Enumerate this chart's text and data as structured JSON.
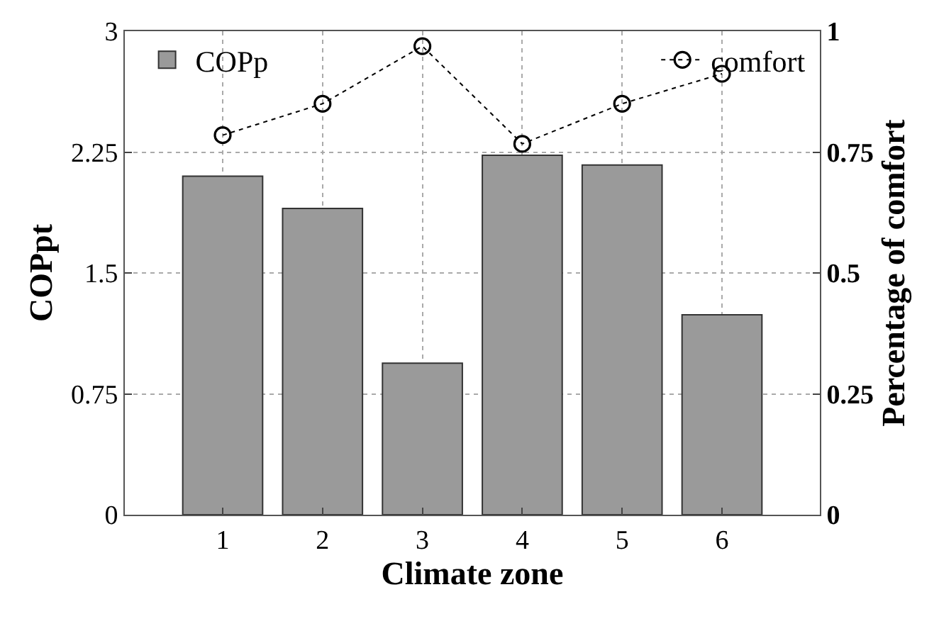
{
  "chart_data": {
    "type": "bar",
    "xlabel": "Climate zone",
    "ylabel": "COPpt",
    "y2label": "Percentage of comfort",
    "categories": [
      "1",
      "2",
      "3",
      "4",
      "5",
      "6"
    ],
    "series": [
      {
        "name": "COPp",
        "color": "#9a9a9a",
        "values": [
          2.1,
          1.9,
          0.94,
          2.23,
          2.17,
          1.24
        ]
      },
      {
        "name": "comfort",
        "type": "line",
        "axis": "y2",
        "color": "#000000",
        "values": [
          0.785,
          0.85,
          0.969,
          0.767,
          0.85,
          0.912
        ],
        "marker": "circle",
        "line_style": "dotted"
      }
    ],
    "legend": "top",
    "ylim": [
      0,
      3
    ],
    "yticks": [
      0,
      0.75,
      1.5,
      2.25,
      3
    ],
    "y2lim": [
      0,
      1
    ],
    "y2ticks": [
      0,
      0.25,
      0.5,
      0.75,
      1
    ],
    "grid": true
  }
}
